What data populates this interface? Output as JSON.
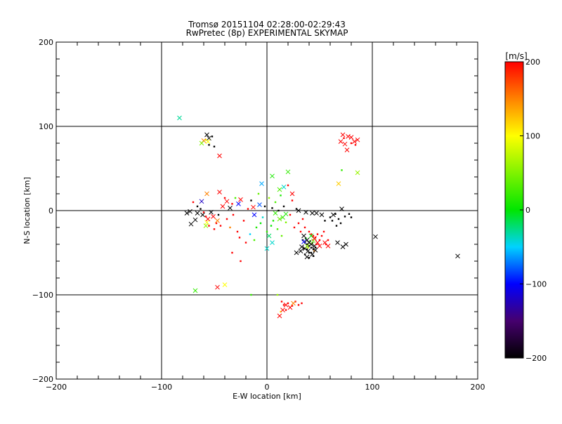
{
  "chart_data": {
    "type": "scatter",
    "title": "Tromsø 20151104 02:28:00-02:29:43",
    "subtitle": "RwPretec (8p) EXPERIMENTAL SKYMAP",
    "xlabel": "E-W location [km]",
    "ylabel": "N-S location [km]",
    "xlim": [
      -200,
      200
    ],
    "ylim": [
      -200,
      200
    ],
    "xticks": [
      "-200",
      "-100",
      "0",
      "100",
      "200"
    ],
    "yticks": [
      "-200",
      "-100",
      "0",
      "100",
      "200"
    ],
    "grid": true,
    "colorbar": {
      "label": "[m/s]",
      "range": [
        -200,
        200
      ],
      "ticks": [
        "200",
        "100",
        "0",
        "-100",
        "-200"
      ],
      "colors": [
        "#000000",
        "#3c0050",
        "#0000ff",
        "#00ffff",
        "#00ff00",
        "#ffff00",
        "#ff8000",
        "#ff0000"
      ]
    },
    "cross_points": [
      [
        -83,
        110,
        -30
      ],
      [
        -57,
        90,
        -200
      ],
      [
        -55,
        86,
        -200
      ],
      [
        -56,
        82,
        100
      ],
      [
        -60,
        83,
        150
      ],
      [
        -62,
        80,
        50
      ],
      [
        -45,
        65,
        200
      ],
      [
        72,
        90,
        200
      ],
      [
        77,
        88,
        200
      ],
      [
        80,
        87,
        200
      ],
      [
        83,
        82,
        200
      ],
      [
        86,
        84,
        200
      ],
      [
        70,
        82,
        200
      ],
      [
        74,
        79,
        200
      ],
      [
        76,
        72,
        200
      ],
      [
        86,
        45,
        60
      ],
      [
        68,
        32,
        120
      ],
      [
        5,
        41,
        10
      ],
      [
        20,
        46,
        20
      ],
      [
        -5,
        32,
        -60
      ],
      [
        16,
        28,
        -40
      ],
      [
        12,
        25,
        30
      ],
      [
        24,
        20,
        200
      ],
      [
        -57,
        20,
        150
      ],
      [
        -45,
        22,
        200
      ],
      [
        -62,
        11,
        -120
      ],
      [
        -38,
        11,
        200
      ],
      [
        -42,
        5,
        200
      ],
      [
        -73,
        -1,
        -200
      ],
      [
        -76,
        -3,
        -200
      ],
      [
        -66,
        -3,
        -200
      ],
      [
        -61,
        -5,
        -200
      ],
      [
        -68,
        -11,
        -200
      ],
      [
        -72,
        -16,
        -200
      ],
      [
        -56,
        -10,
        200
      ],
      [
        -57,
        -14,
        100
      ],
      [
        -58,
        -18,
        60
      ],
      [
        -51,
        -7,
        200
      ],
      [
        -47,
        -12,
        150
      ],
      [
        -53,
        -2,
        -200
      ],
      [
        -35,
        3,
        -200
      ],
      [
        -27,
        8,
        -100
      ],
      [
        -25,
        13,
        200
      ],
      [
        -13,
        4,
        200
      ],
      [
        -7,
        7,
        -80
      ],
      [
        8,
        -3,
        20
      ],
      [
        12,
        -10,
        40
      ],
      [
        15,
        -8,
        20
      ],
      [
        18,
        -4,
        10
      ],
      [
        -12,
        -5,
        -100
      ],
      [
        2,
        -30,
        -20
      ],
      [
        5,
        -38,
        -40
      ],
      [
        0,
        -45,
        -40
      ],
      [
        30,
        0,
        -200
      ],
      [
        37,
        -2,
        -200
      ],
      [
        43,
        -3,
        -200
      ],
      [
        47,
        -3,
        -200
      ],
      [
        52,
        -5,
        -200
      ],
      [
        63,
        -5,
        -200
      ],
      [
        71,
        2,
        -200
      ],
      [
        35,
        -30,
        -200
      ],
      [
        38,
        -35,
        -200
      ],
      [
        40,
        -38,
        -200
      ],
      [
        42,
        -40,
        -200
      ],
      [
        45,
        -42,
        -200
      ],
      [
        36,
        -45,
        -200
      ],
      [
        32,
        -48,
        -200
      ],
      [
        28,
        -50,
        -200
      ],
      [
        33,
        -43,
        -200
      ],
      [
        39,
        -48,
        -200
      ],
      [
        43,
        -52,
        -200
      ],
      [
        38,
        -55,
        -200
      ],
      [
        46,
        -47,
        -200
      ],
      [
        48,
        -38,
        200
      ],
      [
        50,
        -42,
        200
      ],
      [
        42,
        -30,
        0
      ],
      [
        44,
        -36,
        40
      ],
      [
        38,
        -42,
        60
      ],
      [
        35,
        -37,
        -100
      ],
      [
        45,
        -33,
        200
      ],
      [
        55,
        -38,
        200
      ],
      [
        58,
        -42,
        200
      ],
      [
        67,
        -38,
        -200
      ],
      [
        72,
        -43,
        -200
      ],
      [
        75,
        -40,
        -200
      ],
      [
        103,
        -31,
        -200
      ],
      [
        181,
        -54,
        -200
      ],
      [
        -68,
        -95,
        20
      ],
      [
        -47,
        -91,
        200
      ],
      [
        -40,
        -88,
        100
      ],
      [
        18,
        -112,
        200
      ],
      [
        22,
        -115,
        200
      ],
      [
        15,
        -118,
        200
      ],
      [
        12,
        -125,
        200
      ],
      [
        25,
        -110,
        150
      ]
    ],
    "dot_points": [
      [
        -52,
        88,
        -200
      ],
      [
        -55,
        78,
        -200
      ],
      [
        -50,
        76,
        -200
      ],
      [
        -58,
        84,
        80
      ],
      [
        73,
        86,
        200
      ],
      [
        80,
        80,
        200
      ],
      [
        84,
        78,
        200
      ],
      [
        71,
        48,
        20
      ],
      [
        -70,
        10,
        200
      ],
      [
        -66,
        5,
        -200
      ],
      [
        -63,
        2,
        -200
      ],
      [
        -60,
        -2,
        200
      ],
      [
        -58,
        -7,
        200
      ],
      [
        -55,
        -18,
        200
      ],
      [
        -50,
        -22,
        200
      ],
      [
        -48,
        -15,
        200
      ],
      [
        -46,
        -5,
        -200
      ],
      [
        -44,
        -18,
        200
      ],
      [
        -40,
        15,
        200
      ],
      [
        -38,
        -10,
        200
      ],
      [
        -35,
        -20,
        150
      ],
      [
        -33,
        8,
        200
      ],
      [
        -32,
        -5,
        200
      ],
      [
        -30,
        15,
        30
      ],
      [
        -28,
        -25,
        200
      ],
      [
        -26,
        -32,
        200
      ],
      [
        -22,
        -12,
        200
      ],
      [
        -20,
        -38,
        200
      ],
      [
        -18,
        2,
        200
      ],
      [
        -16,
        -28,
        -50
      ],
      [
        -15,
        12,
        -200
      ],
      [
        -12,
        -35,
        30
      ],
      [
        -10,
        -20,
        10
      ],
      [
        -8,
        20,
        40
      ],
      [
        -6,
        -15,
        0
      ],
      [
        -4,
        -8,
        -40
      ],
      [
        -2,
        5,
        -200
      ],
      [
        0,
        -25,
        20
      ],
      [
        2,
        15,
        60
      ],
      [
        4,
        -18,
        0
      ],
      [
        5,
        3,
        -200
      ],
      [
        6,
        -12,
        10
      ],
      [
        8,
        10,
        30
      ],
      [
        10,
        -22,
        30
      ],
      [
        11,
        0,
        -200
      ],
      [
        13,
        18,
        10
      ],
      [
        14,
        -30,
        40
      ],
      [
        16,
        5,
        -200
      ],
      [
        18,
        -14,
        50
      ],
      [
        20,
        30,
        200
      ],
      [
        22,
        -5,
        200
      ],
      [
        24,
        12,
        200
      ],
      [
        26,
        -20,
        200
      ],
      [
        28,
        2,
        -200
      ],
      [
        30,
        -15,
        200
      ],
      [
        32,
        -25,
        200
      ],
      [
        34,
        -10,
        200
      ],
      [
        36,
        -20,
        200
      ],
      [
        40,
        -25,
        200
      ],
      [
        42,
        -28,
        200
      ],
      [
        44,
        -30,
        200
      ],
      [
        46,
        -32,
        200
      ],
      [
        48,
        -28,
        200
      ],
      [
        50,
        -35,
        200
      ],
      [
        52,
        -30,
        200
      ],
      [
        54,
        -25,
        200
      ],
      [
        56,
        -40,
        200
      ],
      [
        58,
        -35,
        200
      ],
      [
        34,
        -35,
        -200
      ],
      [
        36,
        -38,
        -200
      ],
      [
        38,
        -40,
        -200
      ],
      [
        40,
        -42,
        -200
      ],
      [
        42,
        -44,
        -200
      ],
      [
        44,
        -46,
        -200
      ],
      [
        46,
        -44,
        -200
      ],
      [
        38,
        -46,
        -200
      ],
      [
        40,
        -50,
        -200
      ],
      [
        42,
        -50,
        -200
      ],
      [
        36,
        -52,
        -200
      ],
      [
        44,
        -54,
        -200
      ],
      [
        40,
        -56,
        -200
      ],
      [
        37,
        -33,
        0
      ],
      [
        41,
        -36,
        20
      ],
      [
        43,
        -39,
        60
      ],
      [
        39,
        -44,
        80
      ],
      [
        47,
        -40,
        200
      ],
      [
        45,
        -48,
        150
      ],
      [
        35,
        -45,
        -200
      ],
      [
        55,
        -12,
        -200
      ],
      [
        60,
        -8,
        -200
      ],
      [
        62,
        -12,
        -200
      ],
      [
        65,
        -4,
        -200
      ],
      [
        68,
        -10,
        -200
      ],
      [
        70,
        -15,
        -200
      ],
      [
        74,
        -7,
        -200
      ],
      [
        78,
        -4,
        -200
      ],
      [
        80,
        -8,
        -200
      ],
      [
        66,
        -18,
        -200
      ],
      [
        -33,
        -50,
        200
      ],
      [
        -25,
        -60,
        200
      ],
      [
        -15,
        -100,
        20
      ],
      [
        10,
        -100,
        60
      ],
      [
        14,
        -108,
        200
      ],
      [
        16,
        -112,
        200
      ],
      [
        20,
        -110,
        200
      ],
      [
        24,
        -113,
        200
      ],
      [
        27,
        -108,
        200
      ],
      [
        30,
        -112,
        200
      ],
      [
        33,
        -110,
        200
      ],
      [
        18,
        -118,
        200
      ],
      [
        13,
        -120,
        100
      ]
    ]
  }
}
